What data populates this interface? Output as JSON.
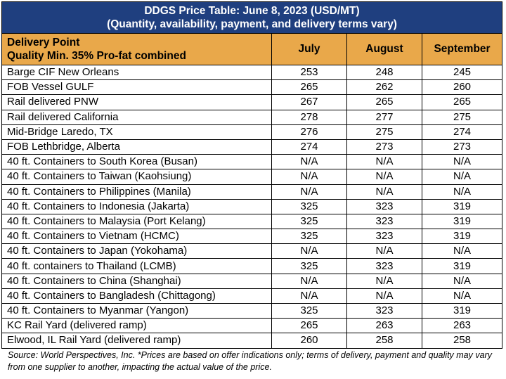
{
  "title": {
    "bold": "DDGS Price Table: June 8, 2023",
    "units": "(USD/MT)",
    "subtitle": "(Quantity, availability, payment, and delivery terms vary)"
  },
  "header": {
    "delivery_point": "Delivery Point",
    "quality": "Quality Min. 35% Pro-fat combined",
    "months": [
      "July",
      "August",
      "September"
    ]
  },
  "chart_data": {
    "type": "table",
    "title": "DDGS Price Table: June 8, 2023 (USD/MT)",
    "columns": [
      "July",
      "August",
      "September"
    ],
    "rows": [
      {
        "point": "Barge CIF New Orleans",
        "values": [
          "253",
          "248",
          "245"
        ]
      },
      {
        "point": "FOB Vessel GULF",
        "values": [
          "265",
          "262",
          "260"
        ]
      },
      {
        "point": "Rail delivered PNW",
        "values": [
          "267",
          "265",
          "265"
        ]
      },
      {
        "point": "Rail delivered California",
        "values": [
          "278",
          "277",
          "275"
        ]
      },
      {
        "point": "Mid-Bridge Laredo, TX",
        "values": [
          "276",
          "275",
          "274"
        ]
      },
      {
        "point": "FOB Lethbridge, Alberta",
        "values": [
          "274",
          "273",
          "273"
        ]
      },
      {
        "point": "40 ft. Containers to South Korea (Busan)",
        "values": [
          "N/A",
          "N/A",
          "N/A"
        ]
      },
      {
        "point": "40 ft. Containers to Taiwan (Kaohsiung)",
        "values": [
          "N/A",
          "N/A",
          "N/A"
        ]
      },
      {
        "point": "40 ft. Containers to Philippines (Manila)",
        "values": [
          "N/A",
          "N/A",
          "N/A"
        ]
      },
      {
        "point": "40 ft. Containers to Indonesia (Jakarta)",
        "values": [
          "325",
          "323",
          "319"
        ]
      },
      {
        "point": "40 ft. Containers to Malaysia (Port Kelang)",
        "values": [
          "325",
          "323",
          "319"
        ]
      },
      {
        "point": "40 ft. Containers to Vietnam (HCMC)",
        "values": [
          "325",
          "323",
          "319"
        ]
      },
      {
        "point": "40 ft. Containers to Japan (Yokohama)",
        "values": [
          "N/A",
          "N/A",
          "N/A"
        ]
      },
      {
        "point": "40 ft. containers to Thailand (LCMB)",
        "values": [
          "325",
          "323",
          "319"
        ]
      },
      {
        "point": "40 ft. Containers to China (Shanghai)",
        "values": [
          "N/A",
          "N/A",
          "N/A"
        ]
      },
      {
        "point": "40 ft. Containers to Bangladesh (Chittagong)",
        "values": [
          "N/A",
          "N/A",
          "N/A"
        ]
      },
      {
        "point": "40 ft. Containers to Myanmar (Yangon)",
        "values": [
          "325",
          "323",
          "319"
        ]
      },
      {
        "point": "KC Rail Yard (delivered ramp)",
        "values": [
          "265",
          "263",
          "263"
        ]
      },
      {
        "point": "Elwood, IL Rail Yard (delivered ramp)",
        "values": [
          "260",
          "258",
          "258"
        ]
      }
    ]
  },
  "colors": {
    "title_bg": "#1f3f7f",
    "header_bg": "#e9a84a"
  },
  "source_note": "Source: World Perspectives, Inc. *Prices are based on offer indications only; terms of delivery, payment and quality may vary from one supplier to another, impacting the actual value of the price."
}
